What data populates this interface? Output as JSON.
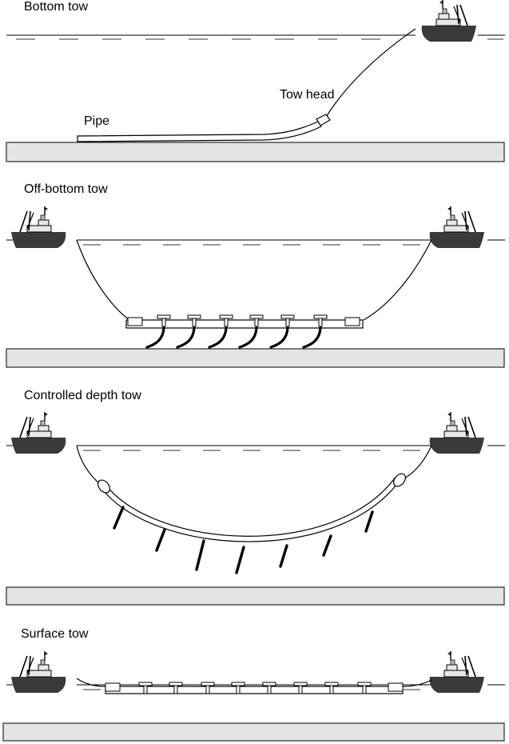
{
  "panels": [
    {
      "title": "Bottom tow",
      "labels": {
        "pipe": "Pipe",
        "tow_head": "Tow head"
      }
    },
    {
      "title": "Off-bottom tow"
    },
    {
      "title": "Controlled depth tow"
    },
    {
      "title": "Surface tow"
    }
  ],
  "colors": {
    "vessel": "#3a3a3a",
    "superstructure": "#e6e6e6",
    "seabed": "#e4e4e4",
    "line": "#000000"
  },
  "icons": [
    "vessel-icon",
    "tow-head-icon",
    "chain-icon",
    "buoy-icon"
  ]
}
